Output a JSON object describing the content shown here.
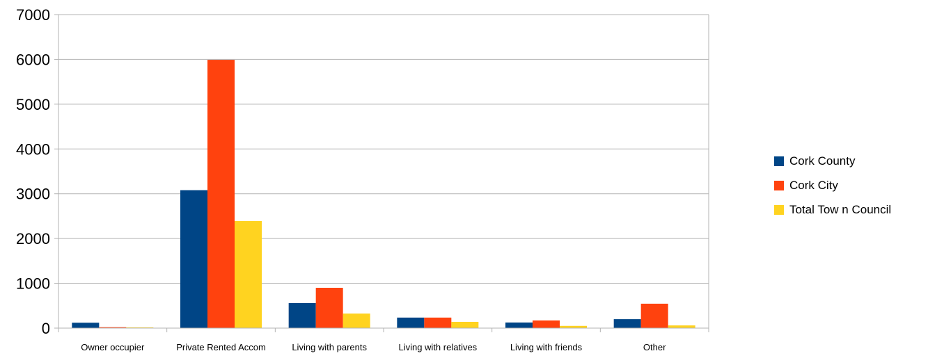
{
  "chart_data": {
    "type": "bar",
    "title": "",
    "xlabel": "",
    "ylabel": "",
    "ylim": [
      0,
      7000
    ],
    "yticks": [
      0,
      1000,
      2000,
      3000,
      4000,
      5000,
      6000,
      7000
    ],
    "grid": true,
    "legend_position": "right",
    "categories": [
      "Owner occupier",
      "Private Rented Accom",
      "Living with parents",
      "Living with relatives",
      "Living with friends",
      "Other"
    ],
    "series": [
      {
        "name": "Cork County",
        "color": "#004586",
        "values": [
          120,
          3080,
          560,
          235,
          125,
          200
        ]
      },
      {
        "name": "Cork City",
        "color": "#ff420e",
        "values": [
          20,
          5990,
          900,
          235,
          170,
          545
        ]
      },
      {
        "name": "Total Tow n Council",
        "color": "#ffd320",
        "values": [
          15,
          2390,
          325,
          140,
          50,
          60
        ]
      }
    ]
  }
}
